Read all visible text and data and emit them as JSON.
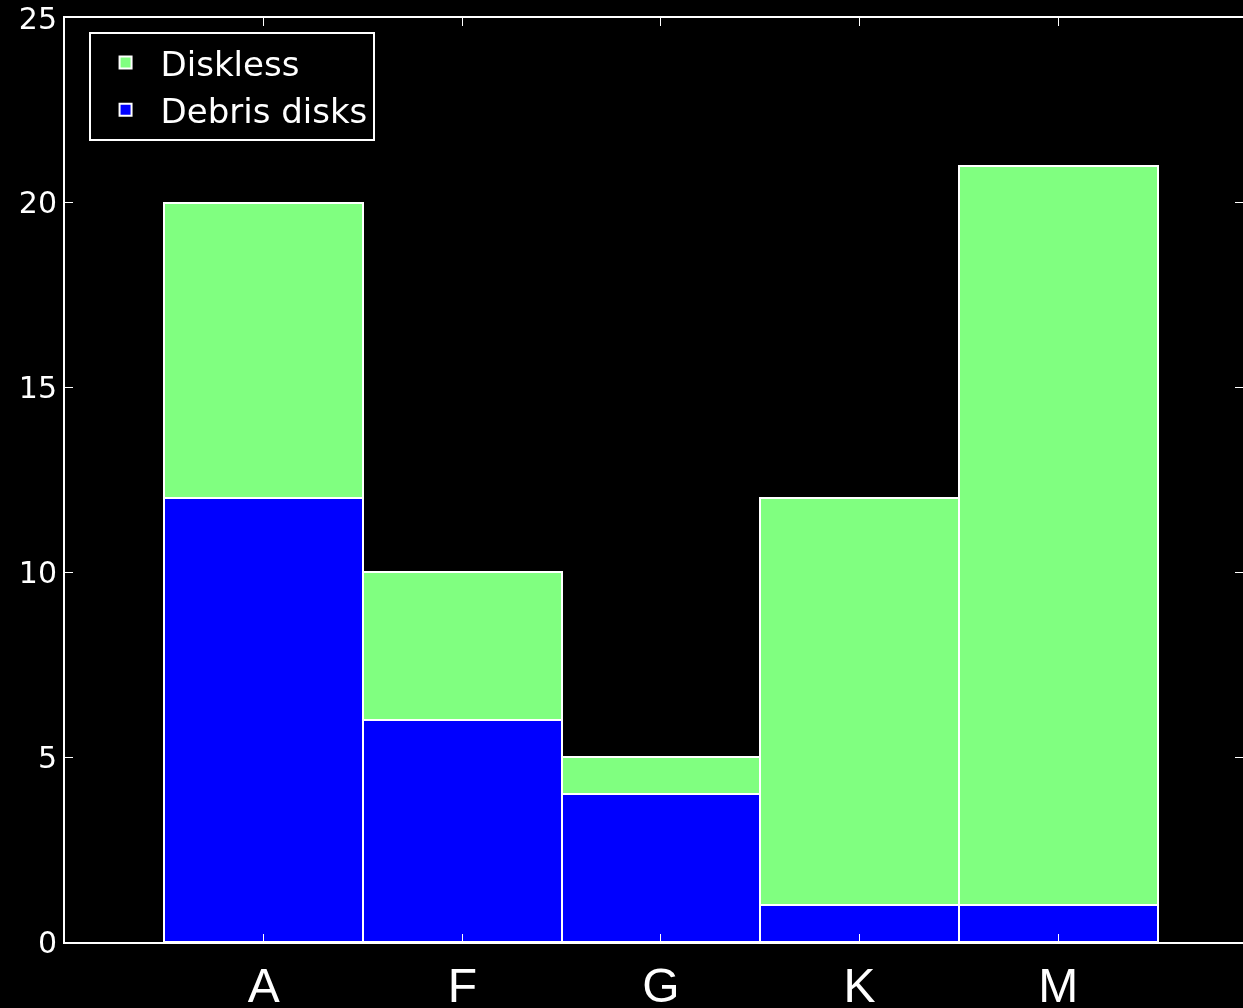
{
  "chart_data": {
    "type": "bar",
    "stacked": true,
    "categories": [
      "A",
      "F",
      "G",
      "K",
      "M"
    ],
    "series": [
      {
        "name": "Debris disks",
        "color": "#0000ff",
        "values": [
          12,
          6,
          4,
          1,
          1
        ]
      },
      {
        "name": "Diskless",
        "color": "#80ff80",
        "values": [
          8,
          4,
          1,
          11,
          20
        ]
      }
    ],
    "ylim": [
      0,
      25
    ],
    "yticks": [
      0,
      5,
      10,
      15,
      20,
      25
    ],
    "grid": false,
    "legend": "top left"
  }
}
